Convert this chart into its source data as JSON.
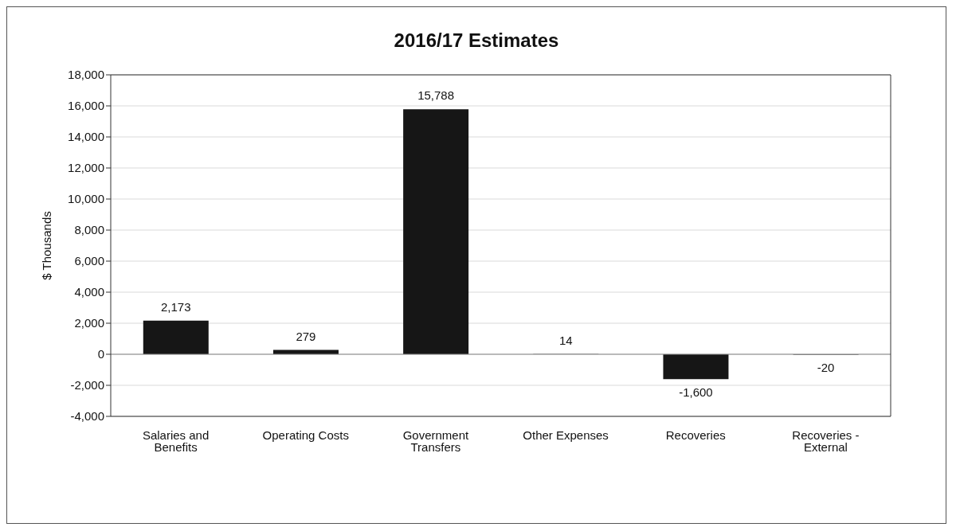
{
  "chart_data": {
    "type": "bar",
    "title": "2016/17 Estimates",
    "ylabel": "$ Thousands",
    "categories": [
      "Salaries and Benefits",
      "Operating Costs",
      "Government Transfers",
      "Other Expenses",
      "Recoveries",
      "Recoveries - External"
    ],
    "values": [
      2173,
      279,
      15788,
      14,
      -1600,
      -20
    ],
    "color": "#161616",
    "value_labels": [
      "2,173",
      "279",
      "15,788",
      "14",
      "-1,600",
      "-20"
    ],
    "ylim": [
      -4000,
      18000
    ],
    "yticks": [
      {
        "value": -4000,
        "label": "-4,000"
      },
      {
        "value": -2000,
        "label": "-2,000"
      },
      0,
      {
        "value": 2000,
        "label": "2,000"
      },
      {
        "value": 4000,
        "label": "4,000"
      },
      {
        "value": 6000,
        "label": "6,000"
      },
      {
        "value": 8000,
        "label": "8,000"
      },
      {
        "value": 10000,
        "label": "10,000"
      },
      {
        "value": 12000,
        "label": "12,000"
      },
      {
        "value": 14000,
        "label": "14,000"
      },
      {
        "value": 16000,
        "label": "16,000"
      },
      {
        "value": 18000,
        "label": "18,000"
      }
    ],
    "grid": "y",
    "legend": false
  }
}
